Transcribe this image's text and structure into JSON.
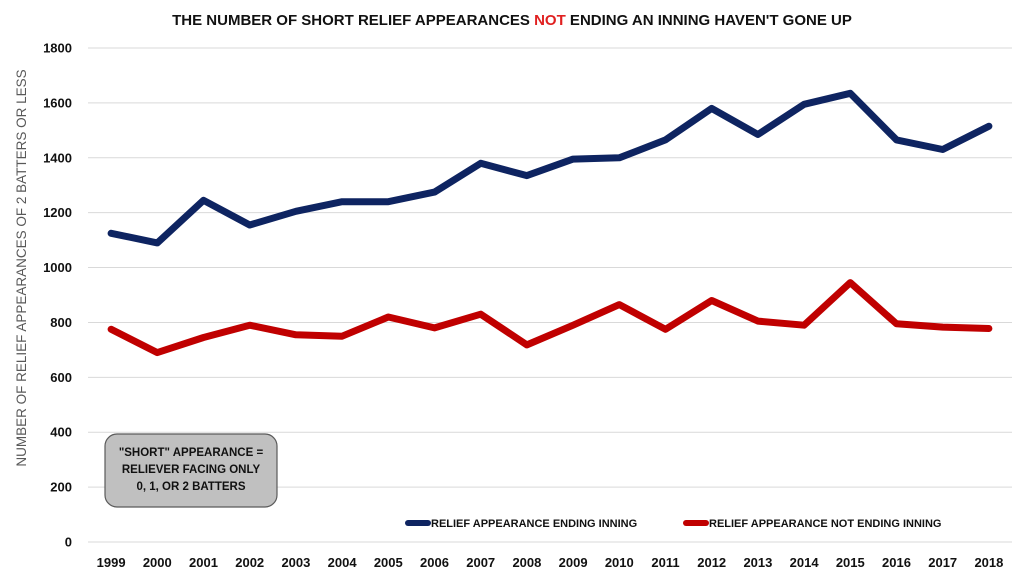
{
  "chart_data": {
    "type": "line",
    "title_parts": [
      "THE NUMBER OF SHORT RELIEF APPEARANCES ",
      "NOT",
      " ENDING AN INNING HAVEN'T GONE UP"
    ],
    "ylabel": "NUMBER OF RELIEF APPEARANCES OF 2 BATTERS OR LESS",
    "xlabel": "",
    "categories": [
      "1999",
      "2000",
      "2001",
      "2002",
      "2003",
      "2004",
      "2005",
      "2006",
      "2007",
      "2008",
      "2009",
      "2010",
      "2011",
      "2012",
      "2013",
      "2014",
      "2015",
      "2016",
      "2017",
      "2018"
    ],
    "ylim": [
      0,
      1800
    ],
    "yticks": [
      0,
      200,
      400,
      600,
      800,
      1000,
      1200,
      1400,
      1600,
      1800
    ],
    "grid": "horizontal",
    "legend_position": "bottom-right",
    "series": [
      {
        "name": "RELIEF APPEARANCE ENDING INNING",
        "color": "#0e2461",
        "values": [
          1125,
          1090,
          1245,
          1155,
          1205,
          1240,
          1240,
          1275,
          1380,
          1335,
          1395,
          1400,
          1465,
          1580,
          1485,
          1595,
          1635,
          1465,
          1430,
          1515
        ]
      },
      {
        "name": "RELIEF APPEARANCE NOT ENDING INNING",
        "color": "#c00000",
        "values": [
          775,
          690,
          745,
          790,
          755,
          750,
          820,
          780,
          830,
          718,
          790,
          865,
          775,
          880,
          805,
          790,
          945,
          795,
          783,
          778
        ]
      }
    ],
    "annotation": {
      "lines": [
        "\"SHORT\" APPEARANCE =",
        "RELIEVER FACING ONLY",
        "0, 1, OR 2 BATTERS"
      ]
    },
    "colors": {
      "title_accent": "#e02020",
      "gridline": "#d9d9d9",
      "note_fill": "#c0c0c0"
    }
  }
}
